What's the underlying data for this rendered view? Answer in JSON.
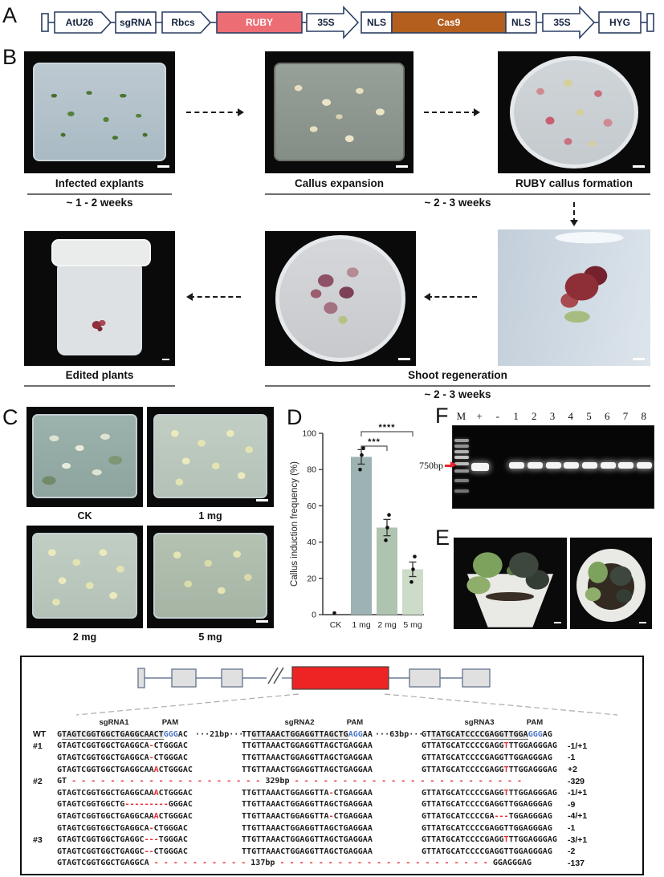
{
  "figure": {
    "panels": {
      "A": "A",
      "B": "B",
      "C": "C",
      "D": "D",
      "E": "E",
      "F": "F"
    }
  },
  "construct": {
    "items": [
      {
        "label": "AtU26"
      },
      {
        "label": "sgRNA"
      },
      {
        "label": "Rbcs"
      },
      {
        "label": "RUBY"
      },
      {
        "label": "35S"
      },
      {
        "label": "NLS"
      },
      {
        "label": "Cas9"
      },
      {
        "label": "NLS"
      },
      {
        "label": "35S"
      },
      {
        "label": "HYG"
      }
    ],
    "ruby_color": "#ed6d74",
    "cas9_color": "#b45f1e"
  },
  "workflow": {
    "step1_caption": "Infected explants",
    "step1_duration": "~ 1 - 2 weeks",
    "step2_caption": "Callus expansion",
    "step3_caption": "RUBY callus formation",
    "row1_duration": "~ 2 - 3 weeks",
    "step4_caption": "Edited plants",
    "step5_caption": "Shoot regeneration",
    "row2_duration": "~ 2 - 3 weeks"
  },
  "treatments": {
    "labels": [
      "CK",
      "1 mg",
      "2 mg",
      "5 mg"
    ]
  },
  "chart_data": {
    "type": "bar",
    "categories": [
      "CK",
      "1 mg",
      "2 mg",
      "5 mg"
    ],
    "values": [
      0,
      87,
      48,
      25
    ],
    "errors": [
      0,
      4,
      4.5,
      4
    ],
    "points": [
      [
        0
      ],
      [
        80,
        88,
        92
      ],
      [
        41,
        48,
        55
      ],
      [
        18,
        25,
        32
      ]
    ],
    "bar_colors": [
      "#9fb3b3",
      "#9db2b2",
      "#afc4b0",
      "#cddcc8"
    ],
    "ylabel": "Callus induction frequency (%)",
    "ylim": [
      0,
      100
    ],
    "yticks": [
      0,
      20,
      40,
      60,
      80,
      100
    ],
    "grid": false,
    "significance": [
      {
        "pair": [
          1,
          3
        ],
        "label": "****"
      },
      {
        "pair": [
          1,
          2
        ],
        "label": "***"
      }
    ]
  },
  "gel": {
    "lanes": [
      "M",
      "+",
      "-",
      "1",
      "2",
      "3",
      "4",
      "5",
      "6",
      "7",
      "8"
    ],
    "bands_in": [
      "+",
      "1",
      "2",
      "3",
      "4",
      "5",
      "6",
      "7",
      "8"
    ],
    "marker_label": "750bp"
  },
  "alignment": {
    "headers": [
      "sgRNA1",
      "PAM",
      "sgRNA2",
      "PAM",
      "sgRNA3",
      "PAM"
    ],
    "rows": [
      {
        "label": "WT",
        "s1": "G_TAGTCGGTGGCTGAGGCAACT_~GGG~AC",
        "sep1": "···21bp···",
        "s2": "TT_GTTAAACTGGAGGTTAGCTG_~AGG~AA",
        "sep2": "···63bp···",
        "s3": "GT_TATGCATCCCCGAGGTTGGA_~GGG~AG",
        "note": ""
      },
      {
        "label": "#1",
        "s1": "GTAGTCGGTGGCTGAGGCA-CTGGGAC",
        "s2": "TTGTTAAACTGGAGGTTAGCTGAGGAA",
        "s3": "GTTATGCATCCCCGAGG*T*TTGGAGGGAG",
        "note": "-1/+1"
      },
      {
        "label": "",
        "s1": "GTAGTCGGTGGCTGAGGCA-CTGGGAC",
        "s2": "TTGTTAAACTGGAGGTTAGCTGAGGAA",
        "s3": "GTTATGCATCCCCGAGGTTGGAGGGAG",
        "note": "-1"
      },
      {
        "label": "",
        "s1": "GTAGTCGGTGGCTGAGGCAA*A*CTGGGAC",
        "s2": "TTGTTAAACTGGAGGTTAGCTGAGGAA",
        "s3": "GTTATGCATCCCCGAGG*T*TTGGAGGGAG",
        "note": "+2"
      },
      {
        "label": "#2",
        "merged": "GT - - - - - - - - - - - - - - - - - - - - 329bp - - - - - - - - - - - - - - - - - - - - - - - -",
        "note": "-329"
      },
      {
        "label": "",
        "s1": "GTAGTCGGTGGCTGAGGCAA*A*CTGGGAC",
        "s2": "TTGTTAAACTGGAGGTTA-CTGAGGAA",
        "s3": "GTTATGCATCCCCGAGG*T*TTGGAGGGAG",
        "note": "-1/+1"
      },
      {
        "label": "",
        "s1": "GTAGTCGGTGGCTG---------GGGAC",
        "s2": "TTGTTAAACTGGAGGTTAGCTGAGGAA",
        "s3": "GTTATGCATCCCCGAGGTTGGAGGGAG",
        "note": "-9"
      },
      {
        "label": "",
        "s1": "GTAGTCGGTGGCTGAGGCAA*A*CTGGGAC",
        "s2": "TTGTTAAACTGGAGGTTA-CTGAGGAA",
        "s3": "GTTATGCATCCCCGA---TGGAGGGAG",
        "note": "-4/+1"
      },
      {
        "label": "",
        "s1": "GTAGTCGGTGGCTGAGGCA-CTGGGAC",
        "s2": "TTGTTAAACTGGAGGTTAGCTGAGGAA",
        "s3": "GTTATGCATCCCCGAGGTTGGAGGGAG",
        "note": "-1"
      },
      {
        "label": "#3",
        "s1": "GTAGTCGGTGGCTGAGGC---TGGGAC",
        "s2": "TTGTTAAACTGGAGGTTAGCTGAGGAA",
        "s3": "GTTATGCATCCCCGAGG*T*TTGGAGGGAG",
        "note": "-3/+1"
      },
      {
        "label": "",
        "s1": "GTAGTCGGTGGCTGAGGC--CTGGGAC",
        "s2": "TTGTTAAACTGGAGGTTAGCTGAGGAA",
        "s3": "GTTATGCATCCCCGAGGTTGGAGGGAG",
        "note": "-2"
      },
      {
        "label": "",
        "merged": "GTAGTCGGTGGCTGAGGCA - - - - - - - - - - 137bp - - - - - - - - - - - - - - - - - - - - - - GGAGGGAG",
        "note": "-137"
      }
    ]
  }
}
